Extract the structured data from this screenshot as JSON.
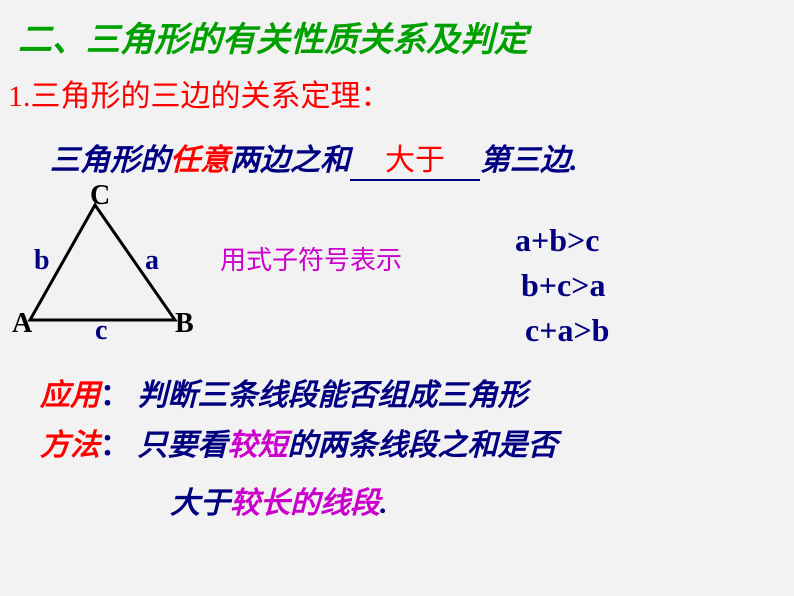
{
  "title": "二、三角形的有关性质关系及判定",
  "subtitle": {
    "num": "1.",
    "text": "三角形的三边的关系定理："
  },
  "theorem": {
    "pre": "三角形的",
    "renyi": "任意",
    "mid": "两边之和",
    "blank": "大于",
    "post": "第三边."
  },
  "triangle": {
    "vertices": {
      "A": "A",
      "B": "B",
      "C": "C"
    },
    "sides": {
      "a": "a",
      "b": "b",
      "c": "c"
    },
    "points": {
      "A": [
        10,
        130
      ],
      "B": [
        155,
        130
      ],
      "C": [
        75,
        15
      ]
    },
    "stroke": "#000000",
    "stroke_width": 3,
    "label_color_vertex": "#000000",
    "label_color_side": "#000080"
  },
  "hint": "用式子符号表示",
  "formulas": [
    "a+b>c",
    "b+c>a",
    "c+a>b"
  ],
  "application": {
    "label": "应用",
    "colon": "：",
    "text": "判断三条线段能否组成三角形"
  },
  "method": {
    "label": "方法",
    "colon": "：",
    "part1": "只要看",
    "hl1": "较短",
    "part2": "的两条线段之和是否",
    "part3": "大于",
    "hl2": "较长的线段",
    "part4": "."
  },
  "colors": {
    "bg": "#f2f2f2",
    "green": "#00a000",
    "red": "#ff0000",
    "navy": "#000080",
    "magenta": "#cc00cc"
  }
}
